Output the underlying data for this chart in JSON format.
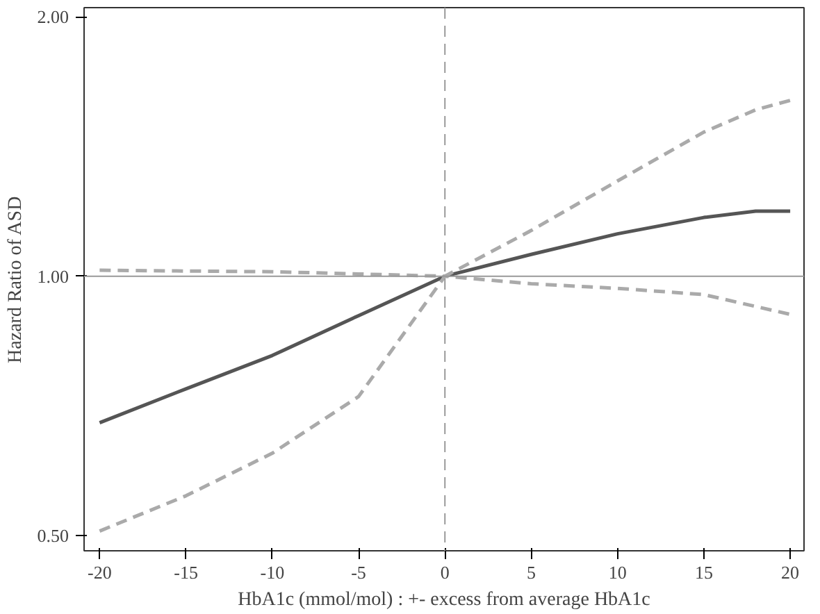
{
  "chart_data": {
    "type": "line",
    "xlabel": "HbA1c (mmol/mol) : +- excess from average HbA1c",
    "ylabel": "Hazard Ratio of ASD",
    "log": "y",
    "grid": false,
    "xlim": [
      -20.9,
      20.8
    ],
    "ylim": [
      0.48,
      2.05
    ],
    "xticks": [
      -20,
      -15,
      -10,
      -5,
      0,
      5,
      10,
      15,
      20
    ],
    "yticks": [
      {
        "value": 0.5,
        "label": "0.50"
      },
      {
        "value": 1,
        "label": "1.00"
      },
      {
        "value": 2,
        "label": "2.00"
      }
    ],
    "series": [
      {
        "color": "#555555",
        "line_style": "solid",
        "x": [
          -20,
          -15,
          -10,
          -5,
          0,
          5,
          10,
          15,
          18,
          20
        ],
        "values": [
          0.676,
          0.74,
          0.809,
          0.9,
          1.0,
          1.06,
          1.12,
          1.17,
          1.19,
          1.19
        ]
      },
      {
        "color": "#aaaaaa",
        "line_style": "dashed",
        "x": [
          -20,
          -10,
          -5,
          0,
          5,
          10,
          15,
          18,
          20
        ],
        "values": [
          1.016,
          1.012,
          1.006,
          1.0,
          1.13,
          1.29,
          1.47,
          1.56,
          1.6
        ]
      },
      {
        "color": "#aaaaaa",
        "line_style": "dashed",
        "x": [
          -20,
          -15,
          -10,
          -5,
          0,
          5,
          10,
          15,
          20
        ],
        "values": [
          0.506,
          0.556,
          0.623,
          0.725,
          1.0,
          0.98,
          0.968,
          0.952,
          0.903
        ]
      }
    ],
    "ref_lines": [
      {
        "axis": "y",
        "value": 1,
        "color": "#999999",
        "line_style": "solid"
      },
      {
        "axis": "x",
        "value": 0,
        "color": "#999999",
        "line_style": "dashed"
      }
    ]
  }
}
